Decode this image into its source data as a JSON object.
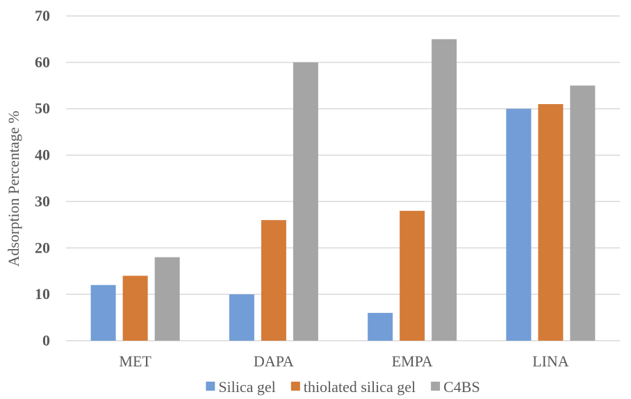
{
  "chart_data": {
    "type": "bar",
    "title": "",
    "xlabel": "",
    "ylabel": "Adsorption Percentage %",
    "categories": [
      "MET",
      "DAPA",
      "EMPA",
      "LINA"
    ],
    "series": [
      {
        "name": "Silica gel",
        "color": "#729dd6",
        "values": [
          12,
          10,
          6,
          50
        ]
      },
      {
        "name": "thiolated silica gel",
        "color": "#d47b38",
        "values": [
          14,
          26,
          28,
          51
        ]
      },
      {
        "name": "C4BS",
        "color": "#a5a5a5",
        "values": [
          18,
          60,
          65,
          55
        ]
      }
    ],
    "ylim": [
      0,
      70
    ],
    "yticks": [
      0,
      10,
      20,
      30,
      40,
      50,
      60,
      70
    ],
    "grid": true,
    "legend_position": "bottom"
  }
}
